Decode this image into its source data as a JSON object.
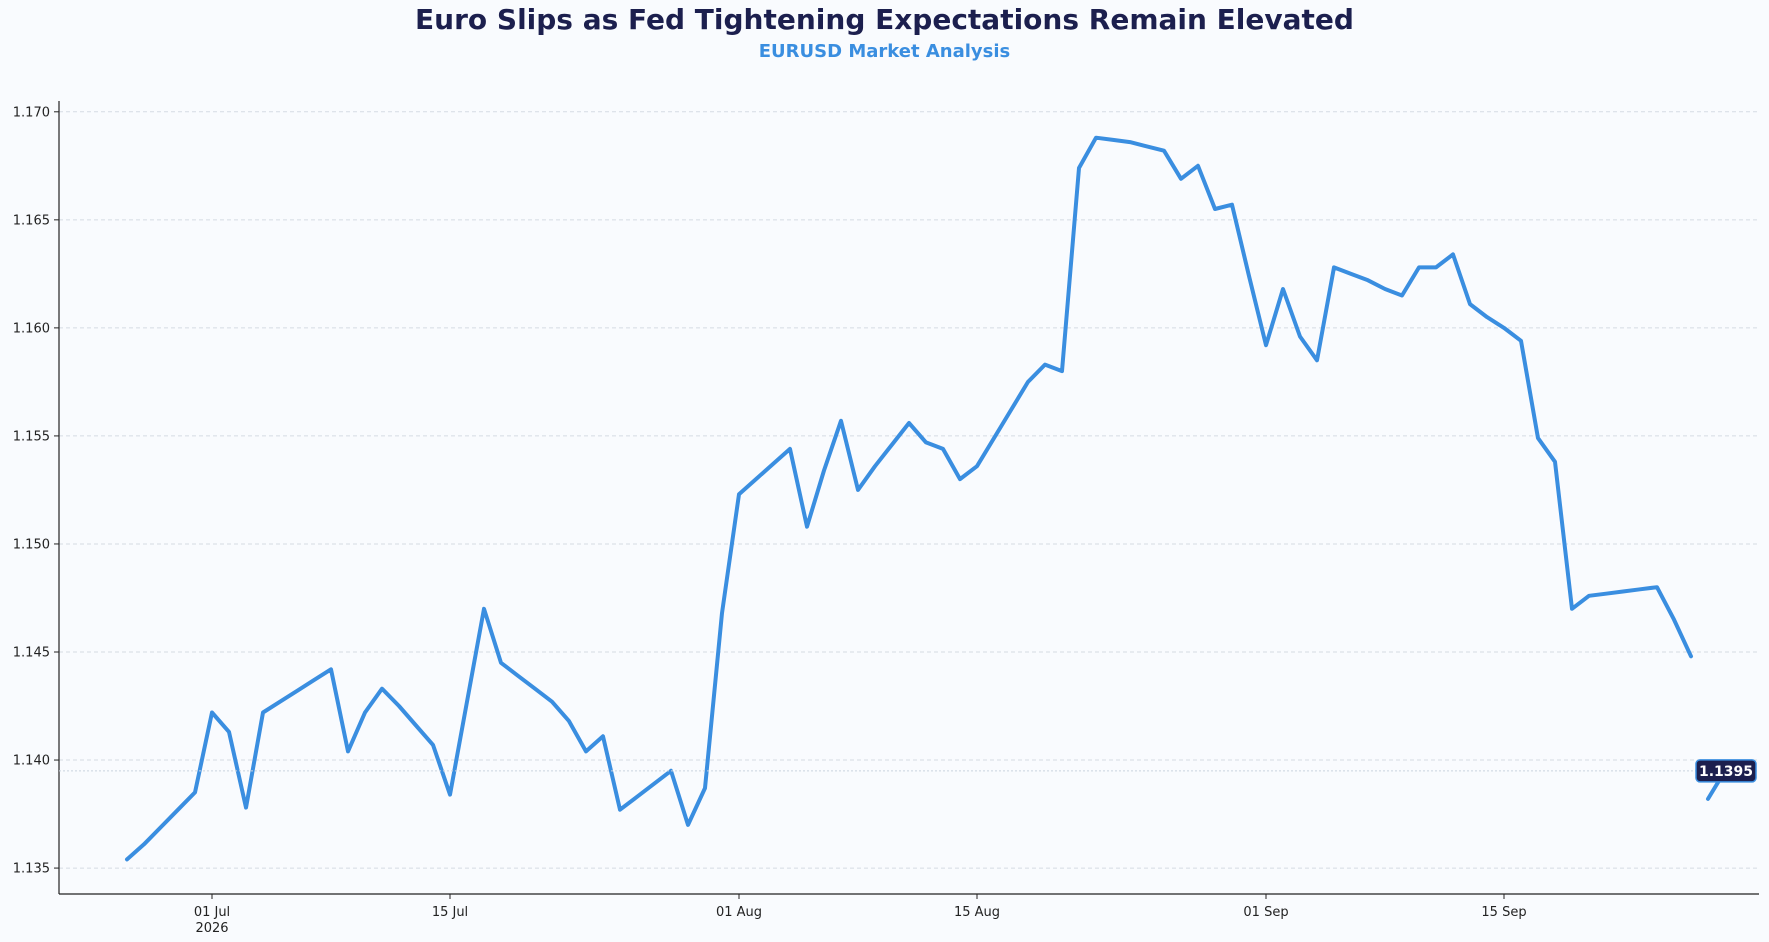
{
  "chart_data": {
    "type": "line",
    "title": "Euro Slips as Fed Tightening Expectations Remain Elevated",
    "subtitle": "EURUSD Market Analysis",
    "xlabel": "",
    "ylabel": "",
    "ylim": [
      1.1338,
      1.1705
    ],
    "xlim": [
      "2026-06-22",
      "2026-09-30"
    ],
    "grid": "y-dashed",
    "line_color": "#3a8ee0",
    "label_bg_color": "#1c1f4e",
    "y_ticks": [
      {
        "value": 1.135,
        "label": "1.135"
      },
      {
        "value": 1.14,
        "label": "1.140"
      },
      {
        "value": 1.145,
        "label": "1.145"
      },
      {
        "value": 1.15,
        "label": "1.150"
      },
      {
        "value": 1.155,
        "label": "1.155"
      },
      {
        "value": 1.16,
        "label": "1.160"
      },
      {
        "value": 1.165,
        "label": "1.165"
      },
      {
        "value": 1.17,
        "label": "1.170"
      }
    ],
    "x_ticks": [
      {
        "date": "2026-07-01",
        "label": "01 Jul",
        "sublabel": "2026"
      },
      {
        "date": "2026-07-15",
        "label": "15 Jul",
        "sublabel": ""
      },
      {
        "date": "2026-08-01",
        "label": "01 Aug",
        "sublabel": ""
      },
      {
        "date": "2026-08-15",
        "label": "15 Aug",
        "sublabel": ""
      },
      {
        "date": "2026-09-01",
        "label": "01 Sep",
        "sublabel": ""
      },
      {
        "date": "2026-09-15",
        "label": "15 Sep",
        "sublabel": ""
      }
    ],
    "last_value_label": "1.1395",
    "series": [
      {
        "x": [
          "2026-06-26",
          "2026-06-27",
          "2026-06-28",
          "2026-06-29",
          "2026-06-30",
          "2026-07-01",
          "2026-07-02",
          "2026-07-03",
          "2026-07-04",
          "2026-07-05",
          "2026-07-06",
          "2026-07-07",
          "2026-07-08",
          "2026-07-09",
          "2026-07-10",
          "2026-07-11",
          "2026-07-12",
          "2026-07-13",
          "2026-07-14",
          "2026-07-15",
          "2026-07-16",
          "2026-07-17",
          "2026-07-18",
          "2026-07-19",
          "2026-07-20",
          "2026-07-21",
          "2026-07-22",
          "2026-07-23",
          "2026-07-24",
          "2026-07-25",
          "2026-07-26",
          "2026-07-27",
          "2026-07-28",
          "2026-07-29",
          "2026-07-30",
          "2026-07-31",
          "2026-08-01",
          "2026-08-02",
          "2026-08-03",
          "2026-08-04",
          "2026-08-05",
          "2026-08-06",
          "2026-08-07",
          "2026-08-08",
          "2026-08-09",
          "2026-08-10",
          "2026-08-11",
          "2026-08-12",
          "2026-08-13",
          "2026-08-14",
          "2026-08-15",
          "2026-08-16",
          "2026-08-17",
          "2026-08-18",
          "2026-08-19",
          "2026-08-20",
          "2026-08-21",
          "2026-08-22",
          "2026-08-23",
          "2026-08-24",
          "2026-08-25",
          "2026-08-26",
          "2026-08-27",
          "2026-08-28",
          "2026-08-29",
          "2026-08-30",
          "2026-08-31",
          "2026-09-01",
          "2026-09-02",
          "2026-09-03",
          "2026-09-04",
          "2026-09-05",
          "2026-09-06",
          "2026-09-07",
          "2026-09-08",
          "2026-09-09",
          "2026-09-10",
          "2026-09-11",
          "2026-09-12",
          "2026-09-13",
          "2026-09-14",
          "2026-09-15",
          "2026-09-16",
          "2026-09-17",
          "2026-09-18",
          "2026-09-19",
          "2026-09-20",
          "2026-09-21",
          "2026-09-22",
          "2026-09-23",
          "2026-09-24",
          "2026-09-25",
          "2026-09-26"
        ],
        "values": [
          1.1354,
          1.1361,
          1.1369,
          1.1377,
          1.1385,
          1.1422,
          1.1413,
          1.1378,
          1.1422,
          1.1427,
          1.1432,
          1.1437,
          1.1442,
          1.1404,
          1.1422,
          1.1433,
          1.1425,
          1.1416,
          1.1407,
          1.1384,
          1.1427,
          1.147,
          1.1445,
          1.1439,
          1.1433,
          1.1427,
          1.1418,
          1.1404,
          1.1411,
          1.1377,
          1.1383,
          1.1389,
          1.1395,
          1.137,
          1.1387,
          1.1468,
          1.1523,
          1.153,
          1.1537,
          1.1544,
          1.1508,
          1.1534,
          1.1557,
          1.1525,
          1.1536,
          1.1546,
          1.1556,
          1.1547,
          1.1544,
          1.153,
          1.1536,
          1.1549,
          1.1562,
          1.1575,
          1.1583,
          1.158,
          1.1674,
          1.1688,
          1.1687,
          1.1686,
          1.1684,
          1.1682,
          1.1669,
          1.1675,
          1.1655,
          1.1657,
          1.1624,
          1.1592,
          1.1618,
          1.1596,
          1.1585,
          1.1628,
          1.1625,
          1.1622,
          1.1618,
          1.1615,
          1.1628,
          1.1628,
          1.1634,
          1.1611,
          1.1605,
          1.16,
          1.1594,
          1.1549,
          1.1538,
          1.147,
          1.1476,
          1.1477,
          1.1478,
          1.1479,
          1.148,
          1.1465,
          1.1448
        ]
      }
    ],
    "tail": {
      "x": [
        "2026-09-27",
        "2026-09-28"
      ],
      "values": [
        1.1382,
        1.1395
      ]
    }
  }
}
